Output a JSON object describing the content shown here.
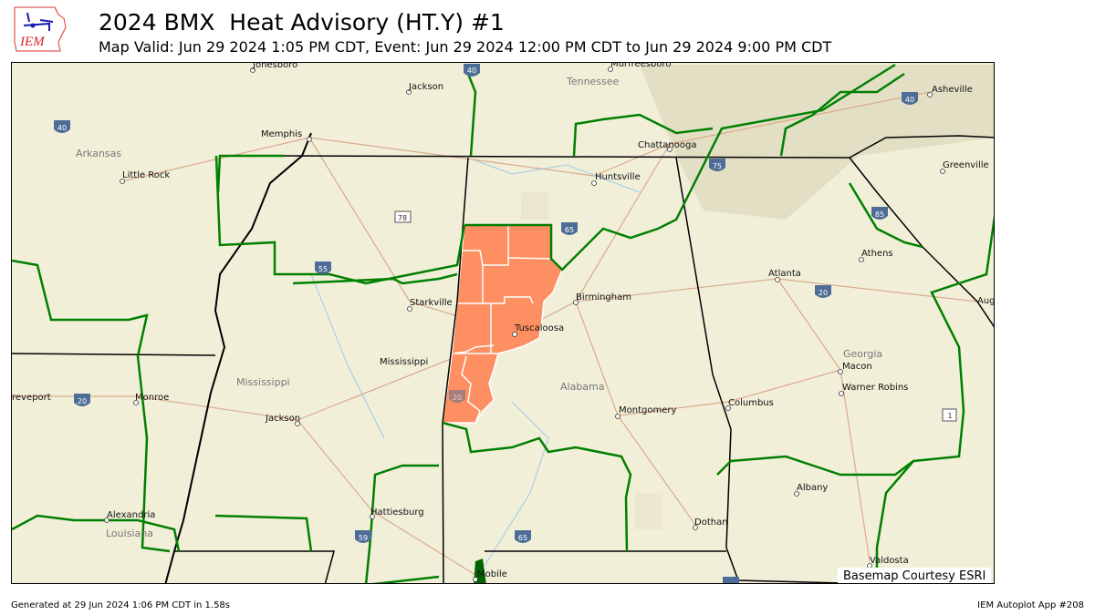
{
  "header": {
    "title": "2024 BMX  Heat Advisory (HT.Y) #1",
    "subtitle": "Map Valid: Jun 29 2024 1:05 PM CDT, Event: Jun 29 2024 12:00 PM CDT to Jun 29 2024 9:00 PM CDT",
    "logo_text": "IEM"
  },
  "map": {
    "advisory_color": "#fe8f62",
    "cwa_border_color": "#008000",
    "state_border_color": "#000000",
    "regions": {
      "tennessee": "Tennessee",
      "arkansas": "Arkansas",
      "mississippi": "Mississippi",
      "alabama": "Alabama",
      "georgia": "Georgia",
      "louisiana": "Louisiana"
    },
    "cities": {
      "jonesboro": "Jonesboro",
      "jackson_tn": "Jackson",
      "murfreesboro": "Murfreesboro",
      "asheville": "Asheville",
      "memphis": "Memphis",
      "little_rock": "Little Rock",
      "chattanooga": "Chattanooga",
      "huntsville": "Huntsville",
      "greenville": "Greenville",
      "athens": "Athens",
      "atlanta": "Atlanta",
      "starkville": "Starkville",
      "birmingham": "Birmingham",
      "tuscaloosa": "Tuscaloosa",
      "augusta": "Aug",
      "macon": "Macon",
      "mississippi_city": "Mississippi",
      "warner_robins": "Warner Robins",
      "shreveport": "reveport",
      "monroe": "Monroe",
      "columbus": "Columbus",
      "montgomery": "Montgomery",
      "jackson_ms": "Jackson",
      "albany": "Albany",
      "hattiesburg": "Hattiesburg",
      "alexandria": "Alexandria",
      "dothan": "Dothan",
      "valdosta": "Valdosta",
      "mobile": "Mobile"
    },
    "shields": [
      "40",
      "40",
      "40",
      "75",
      "78",
      "65",
      "85",
      "55",
      "20",
      "20",
      "20",
      "1",
      "59",
      "65"
    ],
    "credit": "Basemap Courtesy ESRI"
  },
  "footer": {
    "generated": "Generated at 29 Jun 2024 1:06 PM CDT in 1.58s",
    "app": "IEM Autoplot App #208"
  }
}
